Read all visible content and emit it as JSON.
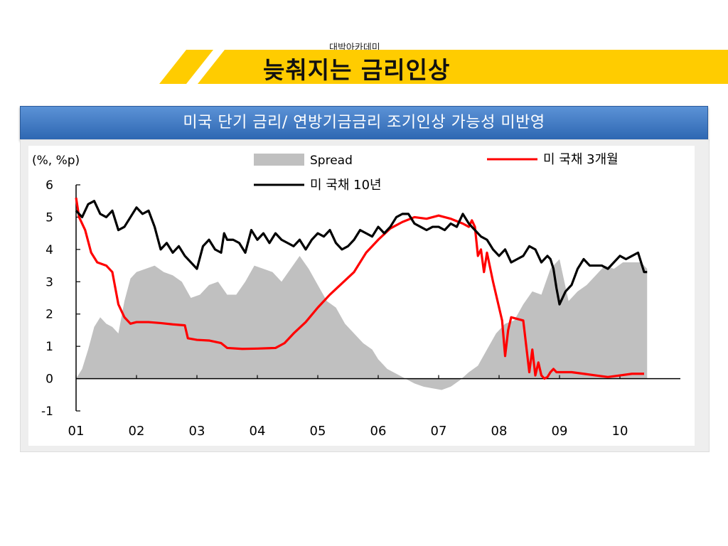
{
  "academy": "대박아카데미",
  "title": "늦춰지는 금리인상",
  "header": "미국 단기 금리/ 연방기금금리 조기인상 가능성 미반영",
  "colors": {
    "banner": "#ffcc00",
    "header": "#3a76c4",
    "spread": "#c0c0c0",
    "t3m": "#ff0000",
    "t10y": "#000000"
  },
  "chart_data": {
    "type": "line",
    "unit_label": "(%, %p)",
    "ylim": [
      -1,
      6
    ],
    "yticks": [
      -1,
      0,
      1,
      2,
      3,
      4,
      5,
      6
    ],
    "xlim": [
      2001,
      2011
    ],
    "xtick_labels": [
      "01",
      "02",
      "03",
      "04",
      "05",
      "06",
      "07",
      "08",
      "09",
      "10"
    ],
    "legend": [
      "Spread",
      "미 국채 3개월",
      "미 국채 10년"
    ],
    "series": [
      {
        "name": "Spread",
        "kind": "area",
        "x": [
          2001.0,
          2001.1,
          2001.2,
          2001.3,
          2001.4,
          2001.5,
          2001.6,
          2001.7,
          2001.8,
          2001.9,
          2002.0,
          2002.15,
          2002.3,
          2002.45,
          2002.6,
          2002.75,
          2002.9,
          2003.05,
          2003.2,
          2003.35,
          2003.5,
          2003.65,
          2003.8,
          2003.95,
          2004.1,
          2004.25,
          2004.4,
          2004.55,
          2004.7,
          2004.85,
          2005.0,
          2005.15,
          2005.3,
          2005.45,
          2005.6,
          2005.75,
          2005.9,
          2006.0,
          2006.15,
          2006.3,
          2006.45,
          2006.6,
          2006.75,
          2006.9,
          2007.05,
          2007.2,
          2007.35,
          2007.5,
          2007.65,
          2007.8,
          2007.95,
          2008.1,
          2008.25,
          2008.4,
          2008.55,
          2008.7,
          2008.85,
          2009.0,
          2009.15,
          2009.3,
          2009.45,
          2009.6,
          2009.75,
          2009.9,
          2010.05,
          2010.2,
          2010.35,
          2010.45
        ],
        "values": [
          0.0,
          0.3,
          0.9,
          1.6,
          1.9,
          1.7,
          1.6,
          1.4,
          2.4,
          3.1,
          3.3,
          3.4,
          3.5,
          3.3,
          3.2,
          3.0,
          2.5,
          2.6,
          2.9,
          3.0,
          2.6,
          2.6,
          3.0,
          3.5,
          3.4,
          3.3,
          3.0,
          3.4,
          3.8,
          3.4,
          2.9,
          2.4,
          2.2,
          1.7,
          1.4,
          1.1,
          0.9,
          0.6,
          0.3,
          0.15,
          0.0,
          -0.15,
          -0.25,
          -0.3,
          -0.35,
          -0.25,
          -0.05,
          0.2,
          0.4,
          0.9,
          1.4,
          1.7,
          1.8,
          2.3,
          2.7,
          2.6,
          3.4,
          3.7,
          2.4,
          2.7,
          2.9,
          3.2,
          3.5,
          3.4,
          3.6,
          3.6,
          3.6,
          3.4
        ]
      },
      {
        "name": "미 국채 3개월",
        "kind": "line",
        "x": [
          2001.0,
          2001.05,
          2001.15,
          2001.25,
          2001.35,
          2001.5,
          2001.6,
          2001.7,
          2001.75,
          2001.8,
          2001.9,
          2002.0,
          2002.2,
          2002.4,
          2002.6,
          2002.8,
          2002.85,
          2003.0,
          2003.2,
          2003.4,
          2003.5,
          2003.75,
          2004.0,
          2004.3,
          2004.45,
          2004.6,
          2004.8,
          2005.0,
          2005.2,
          2005.4,
          2005.6,
          2005.8,
          2006.0,
          2006.2,
          2006.4,
          2006.6,
          2006.8,
          2007.0,
          2007.2,
          2007.4,
          2007.5,
          2007.55,
          2007.6,
          2007.65,
          2007.7,
          2007.75,
          2007.8,
          2007.9,
          2008.0,
          2008.05,
          2008.1,
          2008.15,
          2008.2,
          2008.3,
          2008.4,
          2008.5,
          2008.55,
          2008.6,
          2008.65,
          2008.7,
          2008.75,
          2008.8,
          2008.85,
          2008.9,
          2008.95,
          2009.0,
          2009.2,
          2009.4,
          2009.6,
          2009.8,
          2010.0,
          2010.2,
          2010.4
        ],
        "values": [
          5.6,
          5.0,
          4.6,
          3.9,
          3.6,
          3.5,
          3.3,
          2.3,
          2.1,
          1.9,
          1.7,
          1.75,
          1.75,
          1.72,
          1.68,
          1.65,
          1.25,
          1.2,
          1.18,
          1.1,
          0.95,
          0.92,
          0.93,
          0.95,
          1.1,
          1.4,
          1.75,
          2.2,
          2.6,
          2.95,
          3.3,
          3.9,
          4.3,
          4.65,
          4.85,
          5.0,
          4.95,
          5.05,
          4.95,
          4.8,
          4.7,
          4.9,
          4.7,
          3.8,
          4.0,
          3.3,
          3.9,
          3.0,
          2.2,
          1.8,
          0.7,
          1.5,
          1.9,
          1.85,
          1.8,
          0.2,
          0.9,
          0.1,
          0.5,
          0.1,
          0.0,
          0.05,
          0.2,
          0.3,
          0.2,
          0.2,
          0.2,
          0.15,
          0.1,
          0.05,
          0.1,
          0.15,
          0.15
        ]
      },
      {
        "name": "미 국채 10년",
        "kind": "line",
        "x": [
          2001.0,
          2001.1,
          2001.2,
          2001.3,
          2001.4,
          2001.5,
          2001.6,
          2001.7,
          2001.8,
          2001.9,
          2002.0,
          2002.1,
          2002.2,
          2002.3,
          2002.4,
          2002.5,
          2002.6,
          2002.7,
          2002.8,
          2002.9,
          2003.0,
          2003.1,
          2003.2,
          2003.3,
          2003.4,
          2003.45,
          2003.5,
          2003.6,
          2003.7,
          2003.8,
          2003.9,
          2004.0,
          2004.1,
          2004.2,
          2004.3,
          2004.4,
          2004.5,
          2004.6,
          2004.7,
          2004.8,
          2004.9,
          2005.0,
          2005.1,
          2005.2,
          2005.3,
          2005.4,
          2005.5,
          2005.6,
          2005.7,
          2005.8,
          2005.9,
          2006.0,
          2006.1,
          2006.2,
          2006.3,
          2006.4,
          2006.5,
          2006.6,
          2006.7,
          2006.8,
          2006.9,
          2007.0,
          2007.1,
          2007.2,
          2007.3,
          2007.4,
          2007.5,
          2007.6,
          2007.7,
          2007.8,
          2007.9,
          2008.0,
          2008.1,
          2008.2,
          2008.3,
          2008.4,
          2008.5,
          2008.6,
          2008.7,
          2008.8,
          2008.85,
          2008.9,
          2008.95,
          2009.0,
          2009.1,
          2009.2,
          2009.3,
          2009.4,
          2009.5,
          2009.6,
          2009.7,
          2009.8,
          2009.9,
          2010.0,
          2010.1,
          2010.2,
          2010.3,
          2010.4,
          2010.45
        ],
        "values": [
          5.2,
          5.0,
          5.4,
          5.5,
          5.1,
          5.0,
          5.2,
          4.6,
          4.7,
          5.0,
          5.3,
          5.1,
          5.2,
          4.7,
          4.0,
          4.2,
          3.9,
          4.1,
          3.8,
          3.6,
          3.4,
          4.1,
          4.3,
          4.0,
          3.9,
          4.5,
          4.3,
          4.3,
          4.2,
          3.9,
          4.6,
          4.3,
          4.5,
          4.2,
          4.5,
          4.3,
          4.2,
          4.1,
          4.3,
          4.0,
          4.3,
          4.5,
          4.4,
          4.6,
          4.2,
          4.0,
          4.1,
          4.3,
          4.6,
          4.5,
          4.4,
          4.7,
          4.5,
          4.7,
          5.0,
          5.1,
          5.1,
          4.8,
          4.7,
          4.6,
          4.7,
          4.7,
          4.6,
          4.8,
          4.7,
          5.1,
          4.8,
          4.6,
          4.4,
          4.3,
          4.0,
          3.8,
          4.0,
          3.6,
          3.7,
          3.8,
          4.1,
          4.0,
          3.6,
          3.8,
          3.7,
          3.4,
          2.8,
          2.3,
          2.7,
          2.9,
          3.4,
          3.7,
          3.5,
          3.5,
          3.5,
          3.4,
          3.6,
          3.8,
          3.7,
          3.8,
          3.9,
          3.3,
          3.3
        ]
      }
    ]
  }
}
